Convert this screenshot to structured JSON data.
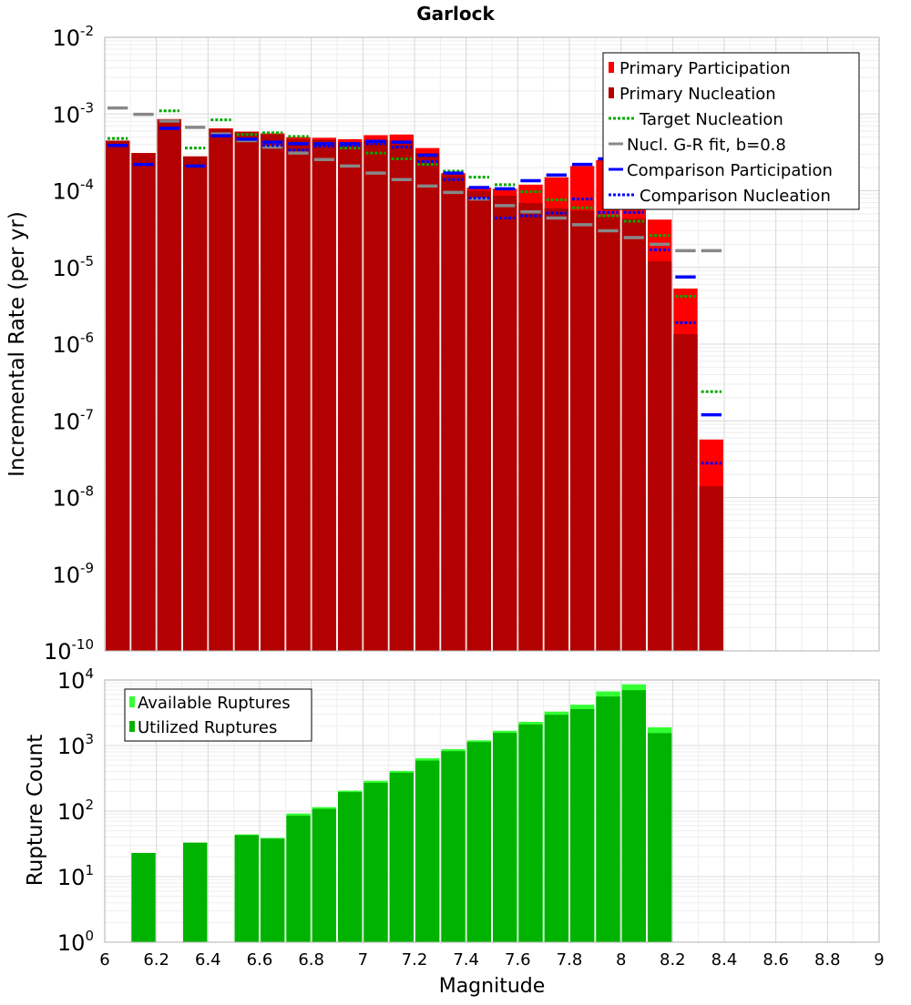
{
  "chart_data": [
    {
      "type": "bar",
      "title": "Garlock",
      "ylabel": "Incremental Rate (per yr)",
      "yscale": "log",
      "ylim_exp": [
        -10,
        -2
      ],
      "xlim": [
        6,
        9
      ],
      "grid": true,
      "legend_position": "top-right",
      "bin_width": 0.1,
      "x": [
        6.05,
        6.15,
        6.25,
        6.35,
        6.45,
        6.55,
        6.65,
        6.75,
        6.85,
        6.95,
        7.05,
        7.15,
        7.25,
        7.35,
        7.45,
        7.55,
        7.65,
        7.75,
        7.85,
        7.95,
        8.05,
        8.15,
        8.25,
        8.35
      ],
      "series": [
        {
          "name": "Primary Participation",
          "kind": "bar",
          "color": "#ff0000",
          "values": [
            0.00045,
            0.00031,
            0.00086,
            0.00028,
            0.00065,
            0.00059,
            0.00056,
            0.0005,
            0.00049,
            0.00047,
            0.00053,
            0.00054,
            0.00036,
            0.00017,
            0.00011,
            0.000106,
            0.00012,
            0.00015,
            0.00021,
            0.00025,
            0.00018,
            4.2e-05,
            5.3e-06,
            5.7e-08
          ]
        },
        {
          "name": "Primary Nucleation",
          "kind": "bar",
          "color": "#b30000",
          "values": [
            0.00045,
            0.00031,
            0.00085,
            0.00028,
            0.00064,
            0.00058,
            0.00054,
            0.00047,
            0.00046,
            0.00043,
            0.00046,
            0.00045,
            0.00031,
            0.00016,
            0.0001,
            8.6e-05,
            6.9e-05,
            5.9e-05,
            5.5e-05,
            4.6e-05,
            4.3e-05,
            1.2e-05,
            1.35e-06,
            1.4e-08
          ]
        },
        {
          "name": "Target Nucleation",
          "kind": "dotted",
          "color": "#00aa00",
          "values": [
            0.00048,
            null,
            0.0011,
            0.00036,
            0.00084,
            0.00054,
            0.00057,
            0.00051,
            0.00039,
            0.00036,
            0.00031,
            0.00026,
            0.00022,
            0.00018,
            0.00015,
            0.00012,
            9.7e-05,
            7.6e-05,
            6e-05,
            4.7e-05,
            4e-05,
            2.6e-05,
            4.2e-06,
            2.4e-07
          ]
        },
        {
          "name": "Nucl. G-R fit, b=0.8",
          "kind": "line",
          "color": "#888888",
          "values": [
            0.0012,
            0.00099,
            0.00081,
            0.00067,
            0.00055,
            0.00045,
            0.00037,
            0.00031,
            0.000255,
            0.00021,
            0.00017,
            0.00014,
            0.000115,
            9.5e-05,
            7.8e-05,
            6.4e-05,
            5.3e-05,
            4.4e-05,
            3.6e-05,
            3e-05,
            2.45e-05,
            2e-05,
            1.65e-05,
            1.65e-05
          ]
        },
        {
          "name": "Comparison Participation",
          "kind": "line",
          "color": "#0000ff",
          "values": [
            0.00039,
            0.00022,
            0.00065,
            0.00021,
            0.00052,
            0.00047,
            0.00043,
            0.00041,
            0.00041,
            0.00041,
            0.00044,
            0.00043,
            0.00029,
            0.00017,
            0.00011,
            0.000106,
            0.000135,
            0.00016,
            0.00022,
            0.00026,
            0.00017,
            6.3e-05,
            7.5e-06,
            1.2e-07
          ]
        },
        {
          "name": "Comparison Nucleation",
          "kind": "dotted",
          "color": "#0000ff",
          "values": [
            null,
            null,
            null,
            null,
            null,
            null,
            0.00039,
            0.00034,
            0.00038,
            0.00039,
            0.00041,
            0.00037,
            0.00024,
            0.00014,
            8e-05,
            4.4e-05,
            4.7e-05,
            5.1e-05,
            7.8e-05,
            5.2e-05,
            5.2e-05,
            1.7e-05,
            1.9e-06,
            2.8e-08
          ]
        }
      ],
      "legend": [
        "Primary Participation",
        "Primary Nucleation",
        "Target Nucleation",
        "Nucl. G-R fit, b=0.8",
        "Comparison Participation",
        "Comparison Nucleation"
      ]
    },
    {
      "type": "bar",
      "xlabel": "Magnitude",
      "ylabel": "Rupture Count",
      "yscale": "log",
      "ylim_exp": [
        0,
        4
      ],
      "xlim": [
        6,
        9
      ],
      "xticks": [
        "6",
        "6.2",
        "6.4",
        "6.6",
        "6.8",
        "7",
        "7.2",
        "7.4",
        "7.6",
        "7.8",
        "8",
        "8.2",
        "8.4",
        "8.6",
        "8.8",
        "9"
      ],
      "grid": true,
      "legend_position": "top-left",
      "bin_width": 0.1,
      "x": [
        6.05,
        6.15,
        6.25,
        6.35,
        6.45,
        6.55,
        6.65,
        6.75,
        6.85,
        6.95,
        7.05,
        7.15,
        7.25,
        7.35,
        7.45,
        7.55,
        7.65,
        7.75,
        7.85,
        7.95,
        8.05,
        8.15
      ],
      "series": [
        {
          "name": "Available Ruptures",
          "color": "#33ff33",
          "values": [
            null,
            23,
            null,
            33,
            1,
            44,
            39,
            92,
            115,
            205,
            290,
            410,
            640,
            880,
            1200,
            1680,
            2300,
            3300,
            4200,
            6700,
            8600,
            1900
          ]
        },
        {
          "name": "Utilized Ruptures",
          "color": "#00b300",
          "values": [
            null,
            23,
            null,
            33,
            1,
            43,
            38,
            85,
            108,
            195,
            270,
            385,
            590,
            820,
            1130,
            1560,
            2100,
            2950,
            3600,
            5600,
            7000,
            1550
          ]
        }
      ],
      "legend": [
        "Available Ruptures",
        "Utilized Ruptures"
      ]
    }
  ]
}
